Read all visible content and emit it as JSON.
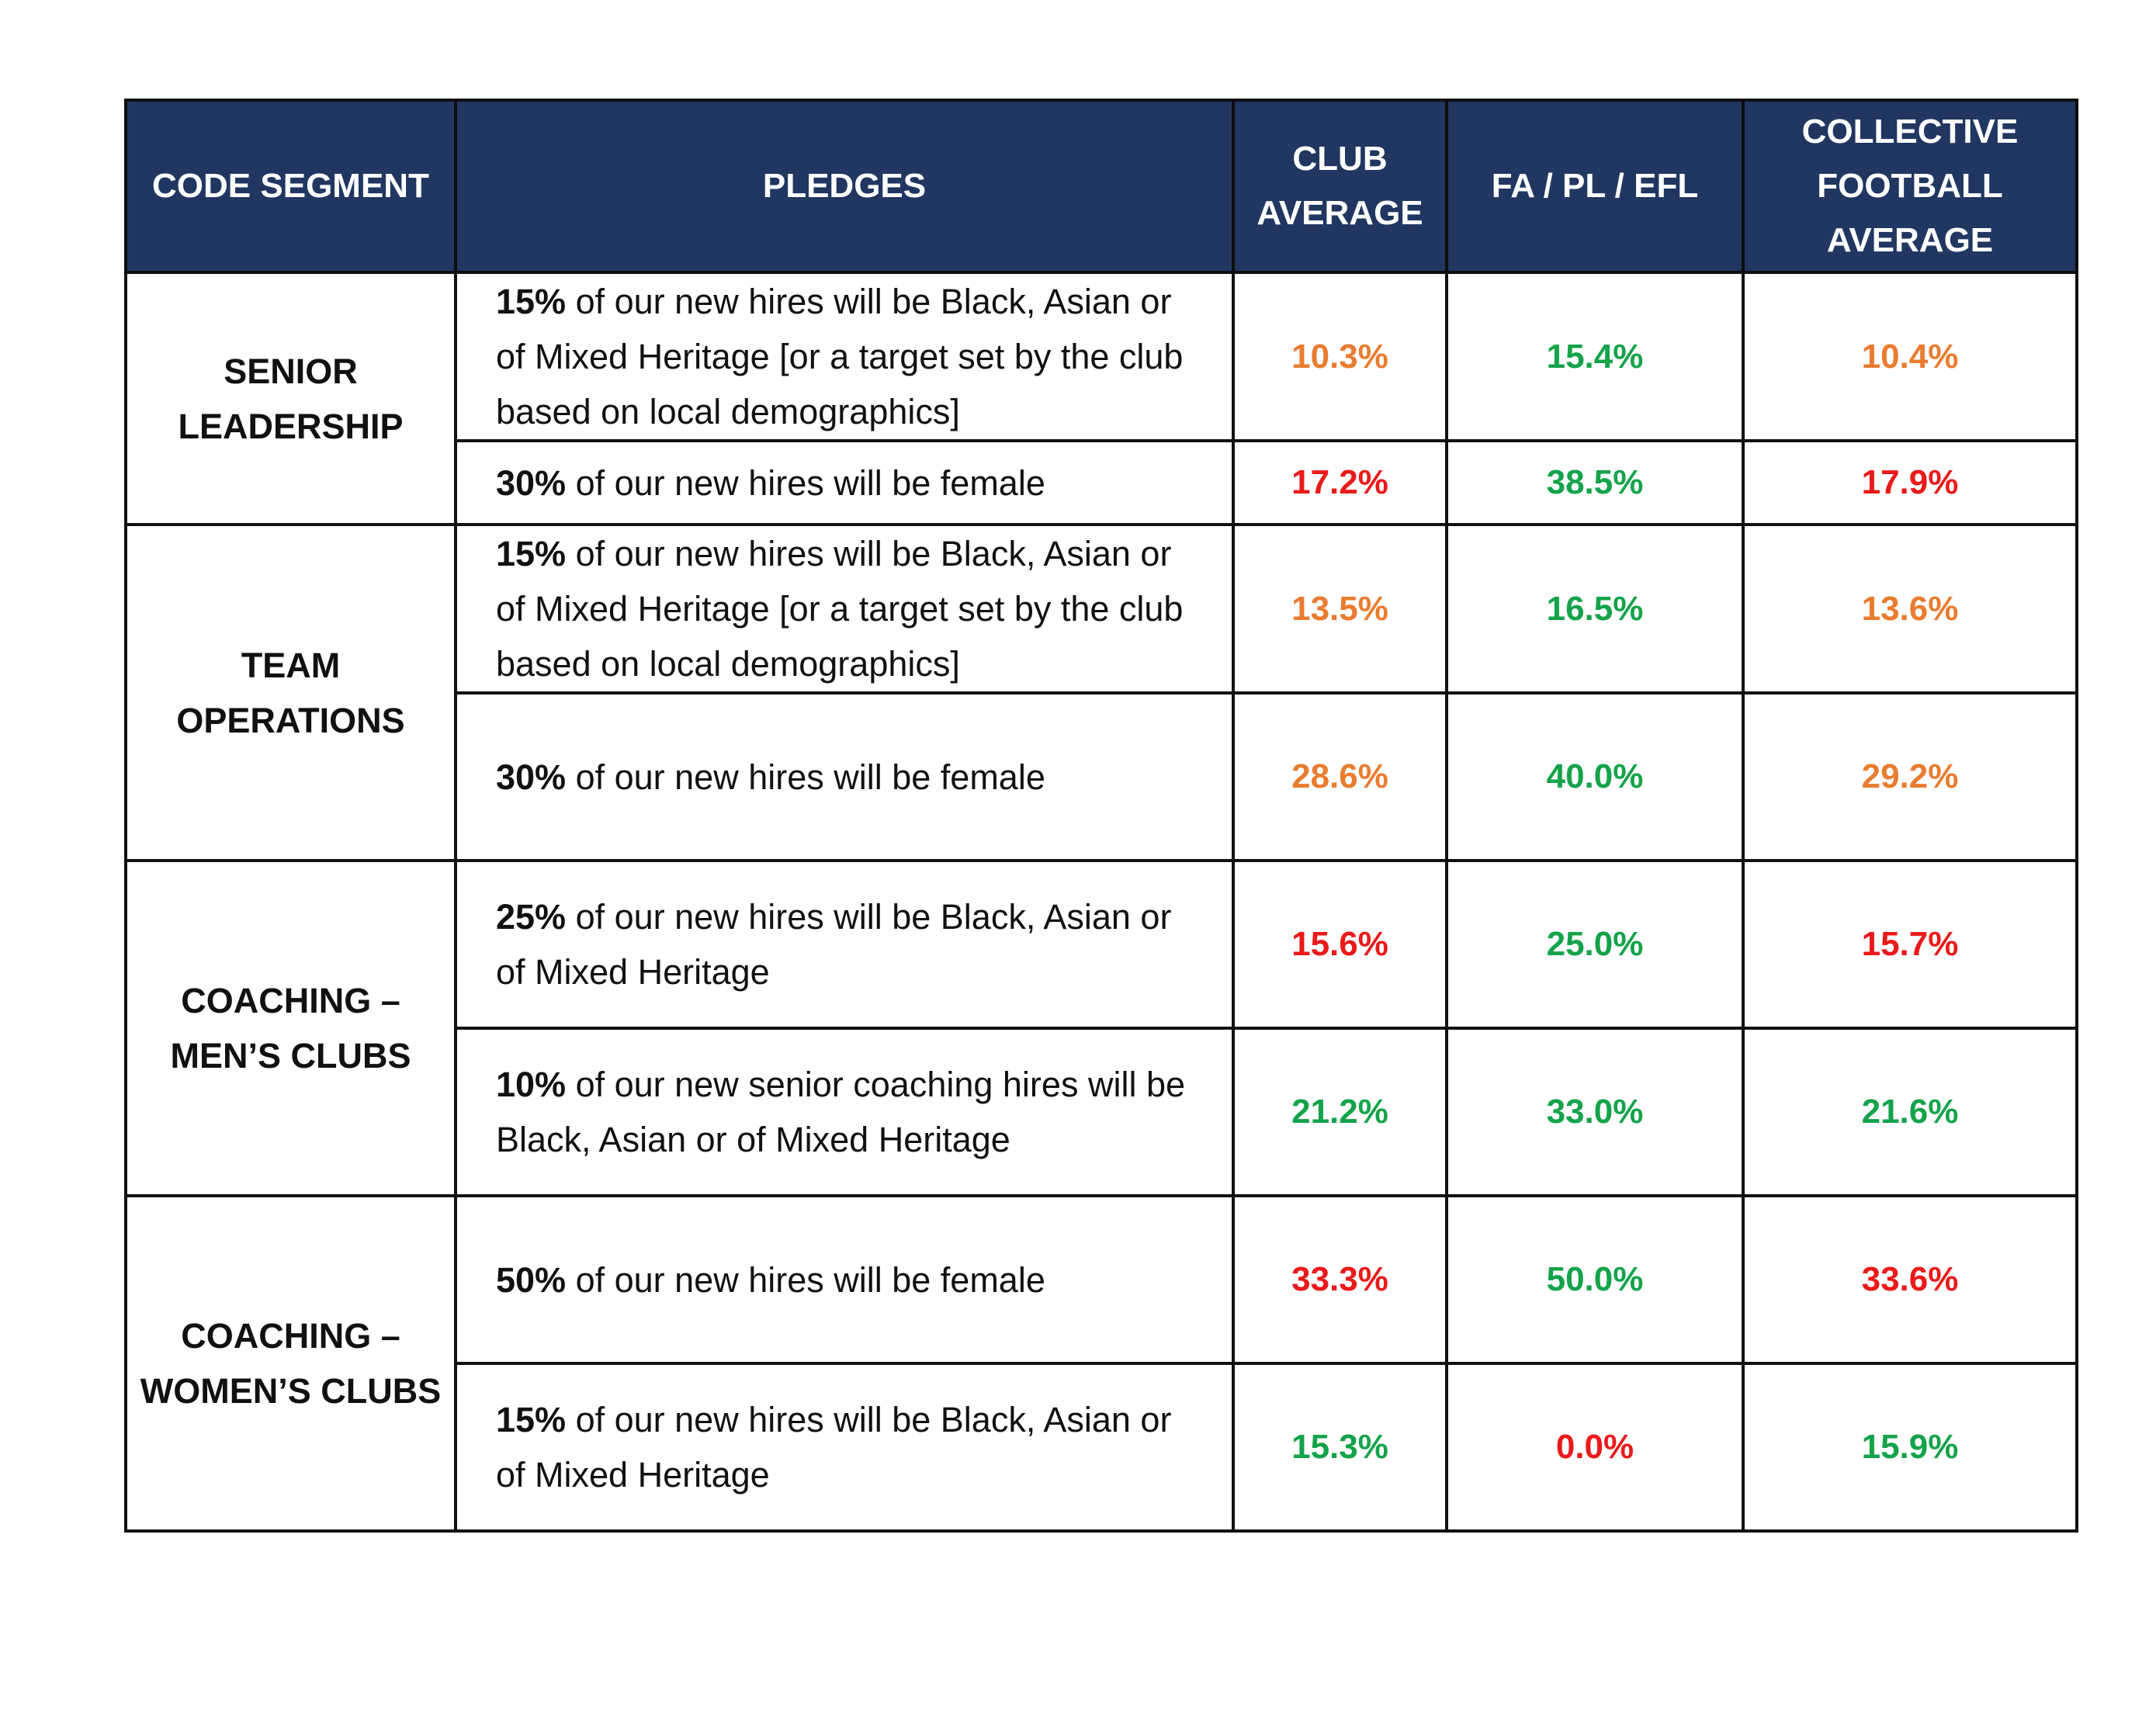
{
  "table": {
    "headers": {
      "segment": "CODE SEGMENT",
      "pledges": "PLEDGES",
      "club_average": [
        "CLUB",
        "AVERAGE"
      ],
      "fa_pl_efl": "FA / PL / EFL",
      "collective": [
        "COLLECTIVE",
        "FOOTBALL",
        "AVERAGE"
      ]
    },
    "colors": {
      "header_bg": "#213761",
      "header_text": "#ffffff",
      "orange": "#e97c30",
      "green": "#14a34a",
      "red": "#ea1a1a"
    },
    "segments": [
      {
        "name": [
          "SENIOR",
          "LEADERSHIP"
        ],
        "rows": [
          {
            "pledge_bold": "15%",
            "pledge_text": " of our new hires will be Black, Asian or of Mixed Heritage [or a target set by the club based on local demographics]",
            "club": {
              "value": "10.3%",
              "status": "orange"
            },
            "fa": {
              "value": "15.4%",
              "status": "green"
            },
            "collective": {
              "value": "10.4%",
              "status": "orange"
            }
          },
          {
            "pledge_bold": "30%",
            "pledge_text": " of our new hires will be female",
            "club": {
              "value": "17.2%",
              "status": "red"
            },
            "fa": {
              "value": "38.5%",
              "status": "green"
            },
            "collective": {
              "value": "17.9%",
              "status": "red"
            }
          }
        ]
      },
      {
        "name": [
          "TEAM OPERATIONS"
        ],
        "rows": [
          {
            "pledge_bold": "15%",
            "pledge_text": " of our new hires will be Black, Asian or of Mixed Heritage [or a target set by the club based on local demographics]",
            "club": {
              "value": "13.5%",
              "status": "orange"
            },
            "fa": {
              "value": "16.5%",
              "status": "green"
            },
            "collective": {
              "value": "13.6%",
              "status": "orange"
            }
          },
          {
            "pledge_bold": "30%",
            "pledge_text": " of our new hires will be female",
            "club": {
              "value": "28.6%",
              "status": "orange"
            },
            "fa": {
              "value": "40.0%",
              "status": "green"
            },
            "collective": {
              "value": "29.2%",
              "status": "orange"
            }
          }
        ]
      },
      {
        "name": [
          "COACHING –",
          "MEN’S CLUBS"
        ],
        "rows": [
          {
            "pledge_bold": "25%",
            "pledge_text": " of our new hires will be Black, Asian or of Mixed Heritage",
            "club": {
              "value": "15.6%",
              "status": "red"
            },
            "fa": {
              "value": "25.0%",
              "status": "green"
            },
            "collective": {
              "value": "15.7%",
              "status": "red"
            }
          },
          {
            "pledge_bold": "10%",
            "pledge_text": " of our new senior coaching hires will be Black, Asian or of Mixed Heritage",
            "club": {
              "value": "21.2%",
              "status": "green"
            },
            "fa": {
              "value": "33.0%",
              "status": "green"
            },
            "collective": {
              "value": "21.6%",
              "status": "green"
            }
          }
        ]
      },
      {
        "name": [
          "COACHING –",
          "WOMEN’S CLUBS"
        ],
        "rows": [
          {
            "pledge_bold": "50%",
            "pledge_text": " of our new hires will be female",
            "club": {
              "value": "33.3%",
              "status": "red"
            },
            "fa": {
              "value": "50.0%",
              "status": "green"
            },
            "collective": {
              "value": "33.6%",
              "status": "red"
            }
          },
          {
            "pledge_bold": "15%",
            "pledge_text": " of our new hires will be Black, Asian or of Mixed Heritage",
            "club": {
              "value": "15.3%",
              "status": "green"
            },
            "fa": {
              "value": "0.0%",
              "status": "red"
            },
            "collective": {
              "value": "15.9%",
              "status": "green"
            }
          }
        ]
      }
    ]
  }
}
